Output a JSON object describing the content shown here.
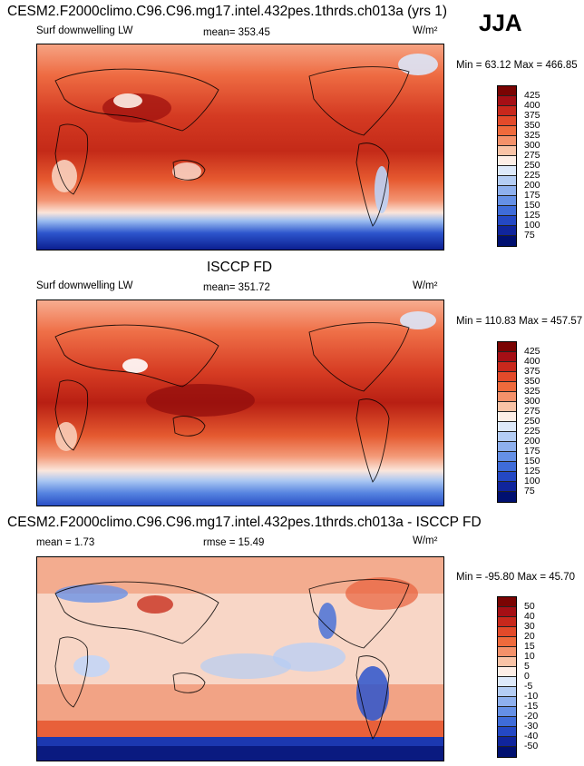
{
  "header": {
    "panel1_title": "CESM2.F2000climo.C96.C96.mg17.intel.432pes.1thrds.ch013a (yrs 1)",
    "season": "JJA",
    "panel2_title": "ISCCP FD",
    "panel3_title": "CESM2.F2000climo.C96.C96.mg17.intel.432pes.1thrds.ch013a - ISCCP FD"
  },
  "panels": [
    {
      "left_label": "Surf downwelling LW",
      "center_label": "mean= 353.45",
      "units": "W/m²",
      "minmax": "Min =  63.12 Max = 466.85",
      "colorbar_labels": [
        "425",
        "400",
        "375",
        "350",
        "325",
        "300",
        "275",
        "250",
        "225",
        "200",
        "175",
        "150",
        "125",
        "100",
        "75"
      ]
    },
    {
      "left_label": "Surf downwelling LW",
      "center_label": "mean= 351.72",
      "units": "W/m²",
      "minmax": "Min = 110.83 Max = 457.57",
      "colorbar_labels": [
        "425",
        "400",
        "375",
        "350",
        "325",
        "300",
        "275",
        "250",
        "225",
        "200",
        "175",
        "150",
        "125",
        "100",
        "75"
      ]
    },
    {
      "left_label": "mean =   1.73",
      "center_label": "rmse =  15.49",
      "units": "W/m²",
      "minmax": "Min = -95.80 Max =  45.70",
      "colorbar_labels": [
        "50",
        "40",
        "30",
        "20",
        "15",
        "10",
        "5",
        "0",
        "-5",
        "-10",
        "-15",
        "-20",
        "-30",
        "-40",
        "-50"
      ]
    }
  ],
  "colors": {
    "levels": [
      "#7a0403",
      "#a50f15",
      "#c8281c",
      "#e34a2a",
      "#ef6a3c",
      "#f4916a",
      "#f9c3a6",
      "#fdeee6",
      "#dde9fa",
      "#b4cdf4",
      "#8eb0ee",
      "#6590e6",
      "#3f6cd9",
      "#2448c4",
      "#10259c",
      "#001070"
    ]
  }
}
